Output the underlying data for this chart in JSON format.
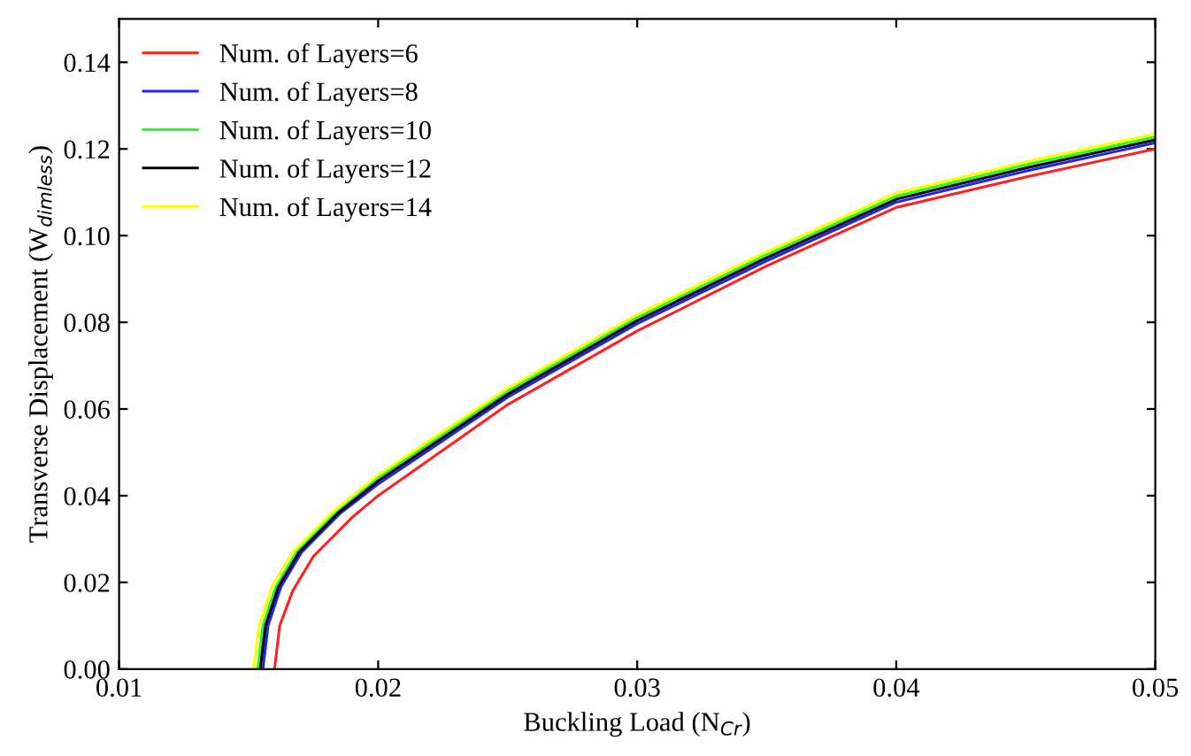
{
  "chart_data": {
    "type": "line",
    "xlabel": "Buckling Load (N$_{Cr}$)",
    "ylabel": "Transverse Displacement (W$_{dimless}$)",
    "xlim": [
      0.01,
      0.05
    ],
    "ylim": [
      0,
      0.15
    ],
    "xticks": [
      {
        "value": 0.01,
        "label": "0.01"
      },
      {
        "value": 0.02,
        "label": "0.02"
      },
      {
        "value": 0.03,
        "label": "0.03"
      },
      {
        "value": 0.04,
        "label": "0.04"
      },
      {
        "value": 0.05,
        "label": "0.05"
      }
    ],
    "yticks": [
      {
        "value": 0,
        "label": "0.00"
      },
      {
        "value": 0.02,
        "label": "0.02"
      },
      {
        "value": 0.04,
        "label": "0.04"
      },
      {
        "value": 0.06,
        "label": "0.06"
      },
      {
        "value": 0.08,
        "label": "0.08"
      },
      {
        "value": 0.1,
        "label": "0.10"
      },
      {
        "value": 0.12,
        "label": "0.12"
      },
      {
        "value": 0.14,
        "label": "0.14"
      }
    ],
    "grid": false,
    "legend": "top left",
    "marker": "none",
    "line_style": "solid",
    "series": [
      {
        "name": "Num. of Layers=6",
        "color": "#ff2020",
        "x": [
          0.016,
          0.0162,
          0.0167,
          0.0175,
          0.019,
          0.02,
          0.025,
          0.03,
          0.035,
          0.04,
          0.045,
          0.05
        ],
        "values": [
          0,
          0.01,
          0.018,
          0.026,
          0.035,
          0.04,
          0.061,
          0.078,
          0.093,
          0.1065,
          0.1135,
          0.12
        ]
      },
      {
        "name": "Num. of Layers=8",
        "color": "#2020ff",
        "x": [
          0.01555,
          0.01575,
          0.01625,
          0.01705,
          0.01855,
          0.02,
          0.025,
          0.03,
          0.035,
          0.04,
          0.045,
          0.05
        ],
        "values": [
          0,
          0.01,
          0.019,
          0.027,
          0.036,
          0.0427,
          0.0627,
          0.0797,
          0.0942,
          0.1077,
          0.1149,
          0.1214
        ]
      },
      {
        "name": "Num. of Layers=10",
        "color": "#20ff20",
        "x": [
          0.01535,
          0.01555,
          0.01605,
          0.01685,
          0.01835,
          0.02,
          0.025,
          0.03,
          0.035,
          0.04,
          0.045,
          0.05
        ],
        "values": [
          0,
          0.01,
          0.019,
          0.027,
          0.036,
          0.0441,
          0.0641,
          0.0811,
          0.0956,
          0.1091,
          0.1163,
          0.1228
        ]
      },
      {
        "name": "Num. of Layers=12",
        "color": "#000000",
        "x": [
          0.01545,
          0.01565,
          0.01615,
          0.01695,
          0.01845,
          0.02,
          0.025,
          0.03,
          0.035,
          0.04,
          0.045,
          0.05
        ],
        "values": [
          0,
          0.01,
          0.019,
          0.027,
          0.036,
          0.0434,
          0.0634,
          0.0804,
          0.0949,
          0.1084,
          0.1156,
          0.1221
        ]
      },
      {
        "name": "Num. of Layers=14",
        "color": "#ffff00",
        "x": [
          0.0152,
          0.0154,
          0.0159,
          0.0167,
          0.0182,
          0.02,
          0.025,
          0.03,
          0.035,
          0.04,
          0.045,
          0.05
        ],
        "values": [
          0,
          0.01,
          0.019,
          0.027,
          0.036,
          0.0448,
          0.0648,
          0.0818,
          0.0963,
          0.1098,
          0.117,
          0.1235
        ]
      }
    ]
  }
}
